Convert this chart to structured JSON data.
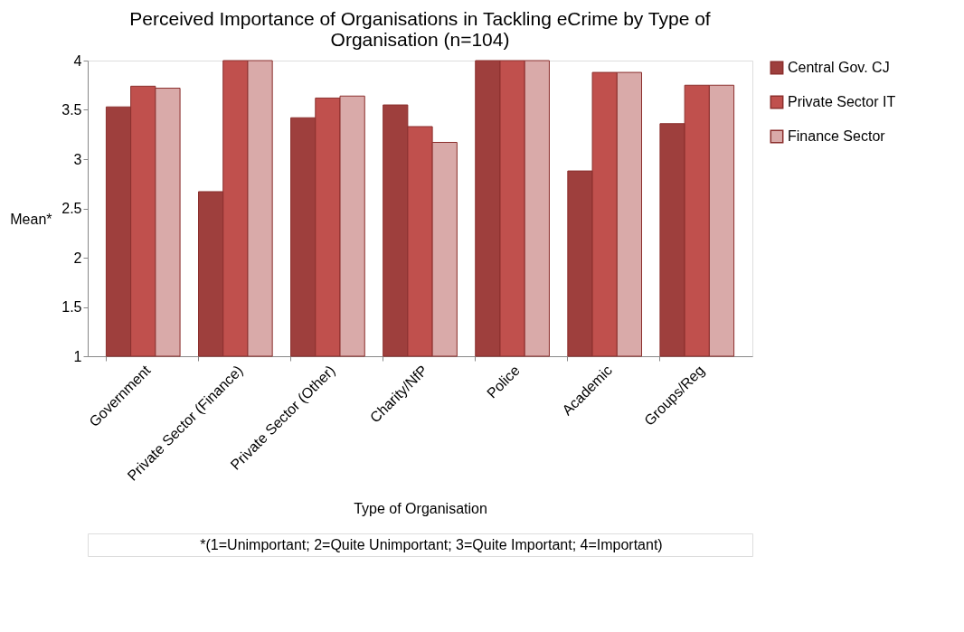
{
  "chart_data": {
    "type": "bar",
    "title": "Perceived Importance of Organisations in Tackling eCrime by Type of Organisation (n=104)",
    "xlabel": "Type of Organisation",
    "ylabel": "Mean*",
    "categories": [
      "Government",
      "Private Sector (Finance)",
      "Private Sector (Other)",
      "Charity/NfP",
      "Police",
      "Academic",
      "Groups/Reg"
    ],
    "series": [
      {
        "name": "Central Gov. CJ",
        "color": "#9e3f3d",
        "values": [
          3.53,
          2.67,
          3.42,
          3.55,
          4,
          2.88,
          3.36
        ]
      },
      {
        "name": "Private Sector IT",
        "color": "#c0504d",
        "values": [
          3.74,
          4,
          3.62,
          3.33,
          4,
          3.88,
          3.75
        ]
      },
      {
        "name": "Finance Sector",
        "color": "#d9aaa9",
        "values": [
          3.72,
          4,
          3.64,
          3.17,
          4,
          3.88,
          3.75
        ]
      }
    ],
    "ylim": [
      1,
      4
    ],
    "yticks": [
      1,
      1.5,
      2,
      2.5,
      3,
      3.5,
      4
    ],
    "grid": false,
    "legend": "right",
    "annotations": [
      "*(1=Unimportant; 2=Quite Unimportant; 3=Quite Important; 4=Important)"
    ]
  }
}
